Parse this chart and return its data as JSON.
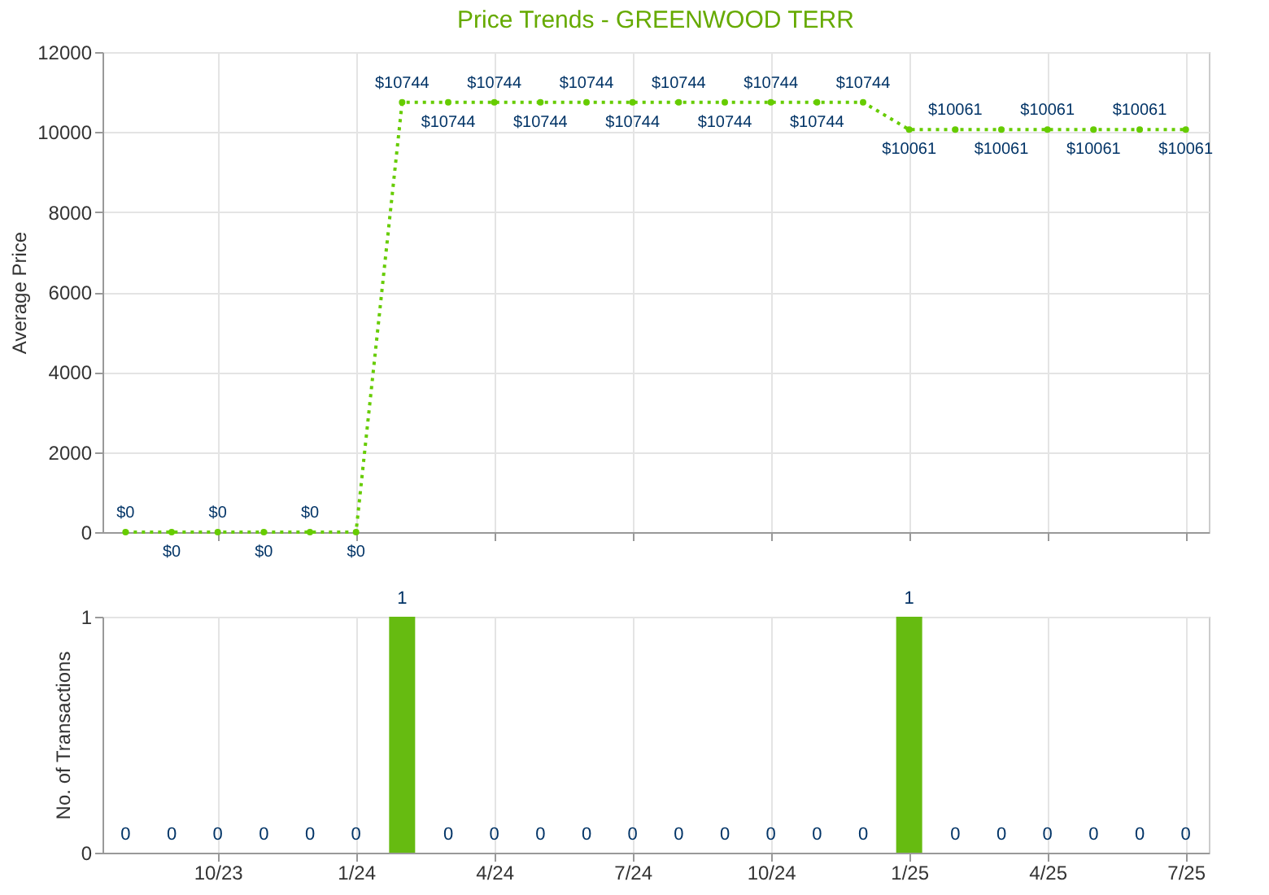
{
  "chart_data": [
    {
      "type": "line",
      "title": "Price Trends - GREENWOOD TERR",
      "ylabel": "Average Price",
      "categories": [
        null,
        null,
        null,
        null,
        null,
        null,
        null,
        null,
        null,
        null,
        null,
        null,
        null,
        null,
        null,
        null,
        null,
        null,
        null,
        null,
        null,
        null,
        null,
        null
      ],
      "values": [
        0,
        0,
        0,
        0,
        0,
        0,
        10744,
        10744,
        10744,
        10744,
        10744,
        10744,
        10744,
        10744,
        10744,
        10744,
        10744,
        10061,
        10061,
        10061,
        10061,
        10061,
        10061,
        10061
      ],
      "value_labels": [
        "$0",
        "$0",
        "$0",
        "$0",
        "$0",
        "$0",
        "$10744",
        "$10744",
        "$10744",
        "$10744",
        "$10744",
        "$10744",
        "$10744",
        "$10744",
        "$10744",
        "$10744",
        "$10744",
        "$10061",
        "$10061",
        "$10061",
        "$10061",
        "$10061",
        "$10061",
        "$10061"
      ],
      "color": "#66cc00",
      "ylim": [
        0,
        12000
      ],
      "yticks": [
        0,
        2000,
        4000,
        6000,
        8000,
        10000,
        12000
      ],
      "grid": true,
      "marker": "circle",
      "line_style": "dotted",
      "tick_labels": "y"
    },
    {
      "type": "bar",
      "ylabel": "No. of Transactions",
      "categories": [
        null,
        null,
        "10/23",
        null,
        null,
        "1/24",
        null,
        null,
        "4/24",
        null,
        null,
        "7/24",
        null,
        null,
        "10/24",
        null,
        null,
        "1/25",
        null,
        null,
        "4/25",
        null,
        null,
        "7/25"
      ],
      "values": [
        0,
        0,
        0,
        0,
        0,
        0,
        1,
        0,
        0,
        0,
        0,
        0,
        0,
        0,
        0,
        0,
        0,
        1,
        0,
        0,
        0,
        0,
        0,
        0
      ],
      "color": "#66bb11",
      "ylim": [
        0,
        1
      ],
      "yticks": [
        0,
        1
      ],
      "grid": true,
      "data_labels": true
    }
  ]
}
